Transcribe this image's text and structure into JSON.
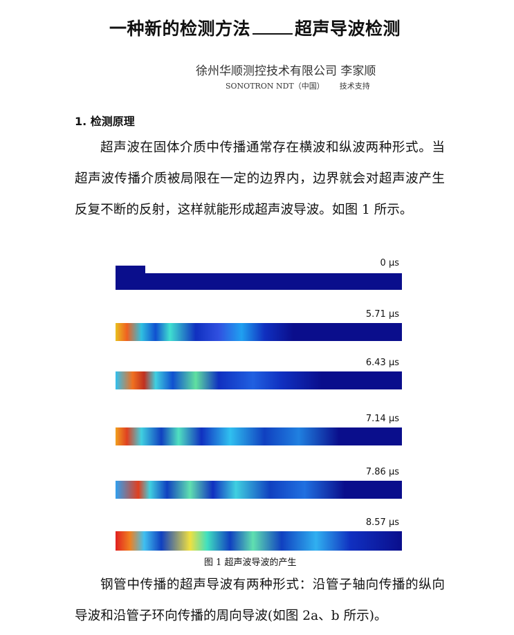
{
  "title": {
    "left": "一种新的检测方法",
    "right": "超声导波检测"
  },
  "author": "徐州华顺测控技术有限公司 李家顺",
  "support": {
    "company": "SONOTRON NDT（中国）",
    "note": "技术支持"
  },
  "section_heading": "1. 检测原理",
  "paragraph1": "超声波在固体介质中传播通常存在横波和纵波两种形式。当超声波传播介质被局限在一定的边界内，边界就会对超声波产生反复不断的反射，这样就能形成超声波导波。如图 1 所示。",
  "figure": {
    "caption": "图 1 超声波导波的产生",
    "frames": [
      {
        "time": "0 μs"
      },
      {
        "time": "5.71 μs"
      },
      {
        "time": "6.43 μs"
      },
      {
        "time": "7.14 μs"
      },
      {
        "time": "7.86 μs"
      },
      {
        "time": "8.57 μs"
      }
    ],
    "colors": {
      "background": "#0a0e8c"
    }
  },
  "paragraph2": "钢管中传播的超声导波有两种形式：沿管子轴向传播的纵向导波和沿管子环向传播的周向导波(如图 2a、b 所示)。"
}
